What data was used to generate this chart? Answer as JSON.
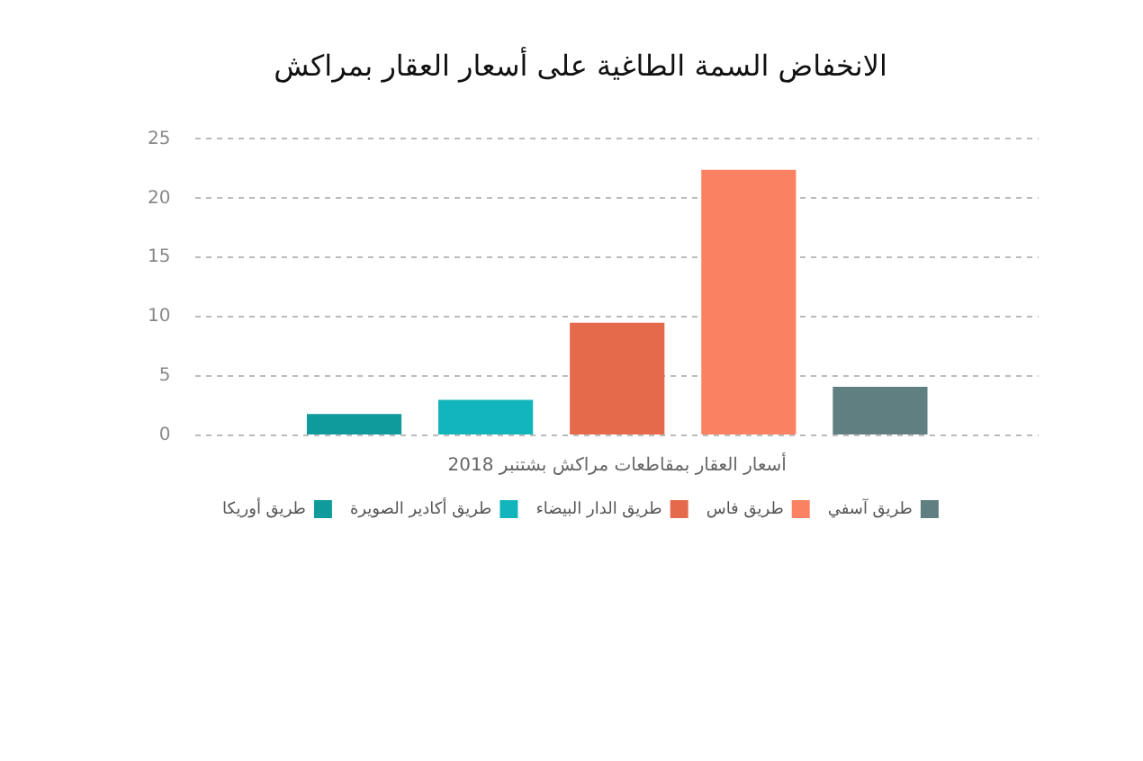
{
  "chart_data": {
    "type": "bar",
    "title": "الانخفاض السمة الطاغية على أسعار العقار بمراكش",
    "categories": [
      "أسعار العقار بمقاطعات مراكش بشتنبر 2018"
    ],
    "series": [
      {
        "name": "طريق أوريكا",
        "color": "#0f9a9b",
        "values": [
          1.8
        ]
      },
      {
        "name": "طريق أكادير الصويرة",
        "color": "#12b5bb",
        "values": [
          3.0
        ]
      },
      {
        "name": "طريق الدار البيضاء",
        "color": "#e46a4b",
        "values": [
          9.5
        ]
      },
      {
        "name": "طريق فاس",
        "color": "#fa8263",
        "values": [
          22.4
        ]
      },
      {
        "name": "طريق آسفي",
        "color": "#607f81",
        "values": [
          4.1
        ]
      }
    ],
    "ylim": [
      0,
      25
    ],
    "yticks": [
      0,
      5,
      10,
      15,
      20,
      25
    ],
    "grid": "y",
    "legend": "bottom"
  }
}
